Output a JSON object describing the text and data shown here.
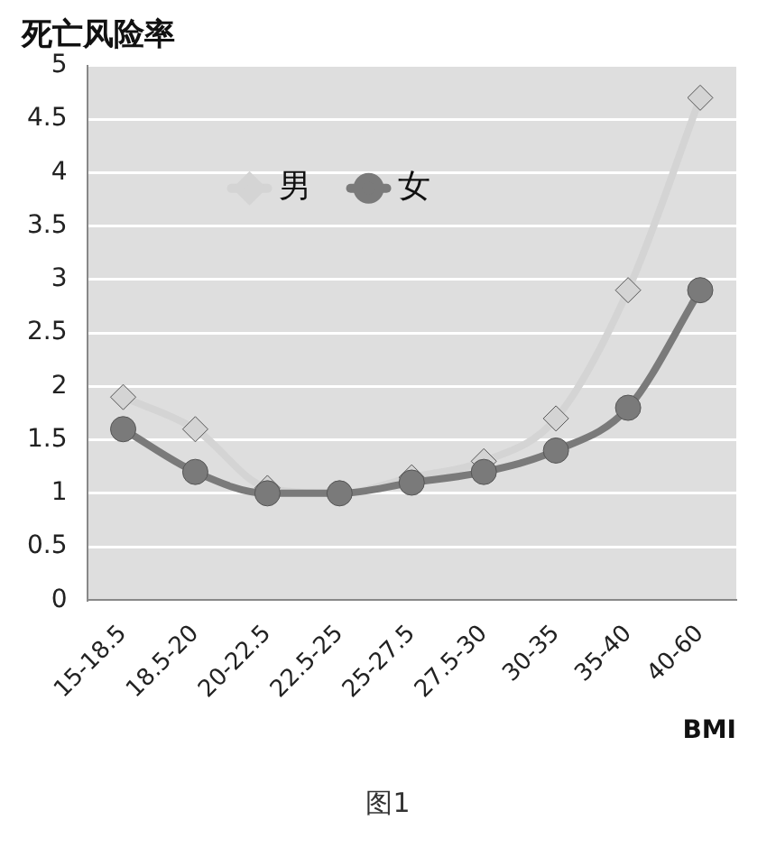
{
  "chart_data": {
    "type": "line",
    "title": "死亡风险率",
    "xlabel": "BMI",
    "categories": [
      "15-18.5",
      "18.5-20",
      "20-22.5",
      "22.5-25",
      "25-27.5",
      "27.5-30",
      "30-35",
      "35-40",
      "40-60"
    ],
    "series": [
      {
        "name": "男",
        "color": "#d4d4d4",
        "marker": "diamond",
        "values": [
          1.9,
          1.6,
          1.05,
          1.0,
          1.15,
          1.3,
          1.7,
          2.9,
          4.7
        ]
      },
      {
        "name": "女",
        "color": "#7a7a7a",
        "marker": "circle",
        "values": [
          1.6,
          1.2,
          1.0,
          1.0,
          1.1,
          1.2,
          1.4,
          1.8,
          2.9
        ]
      }
    ],
    "ylim": [
      0,
      5
    ],
    "yticks": [
      0,
      0.5,
      1,
      1.5,
      2,
      2.5,
      3,
      3.5,
      4,
      4.5,
      5
    ],
    "grid": "y",
    "legend": "top left",
    "annotations": [
      "图1"
    ]
  }
}
